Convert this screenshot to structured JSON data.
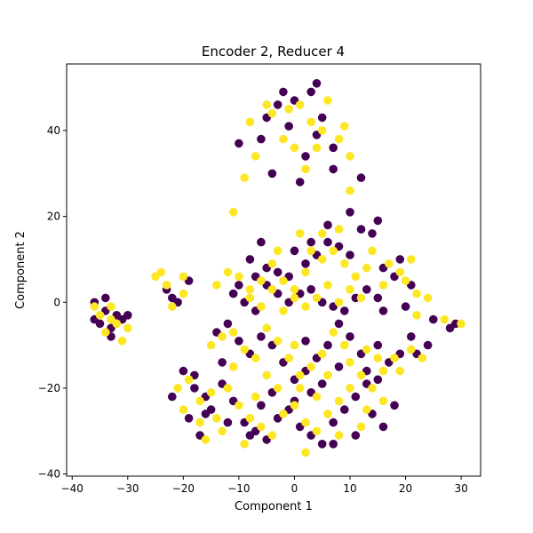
{
  "chart_data": {
    "type": "scatter",
    "title": "Encoder 2, Reducer 4",
    "xlabel": "Component 1",
    "ylabel": "Component 2",
    "xlim": [
      -41,
      33.5
    ],
    "ylim": [
      -40.5,
      55.5
    ],
    "xticks": [
      -40,
      -30,
      -20,
      -10,
      0,
      10,
      20,
      30
    ],
    "yticks": [
      -40,
      -20,
      0,
      20,
      40
    ],
    "grid": false,
    "legend": "none",
    "colors": {
      "class_0": "#440154",
      "class_1": "#fde725"
    },
    "series": [
      {
        "color": "#440154",
        "points": [
          [
            -3,
            46
          ],
          [
            0,
            47
          ],
          [
            3,
            49
          ],
          [
            -5,
            43
          ],
          [
            4,
            39
          ],
          [
            -6,
            38
          ],
          [
            2,
            34
          ],
          [
            -10,
            37
          ],
          [
            7,
            36
          ],
          [
            5,
            43
          ],
          [
            -1,
            41
          ],
          [
            4,
            51
          ],
          [
            -2,
            49
          ],
          [
            -4,
            30
          ],
          [
            7,
            31
          ],
          [
            12,
            29
          ],
          [
            1,
            28
          ],
          [
            -36,
            -4
          ],
          [
            -34,
            -2
          ],
          [
            -33,
            -6
          ],
          [
            -35,
            -5
          ],
          [
            -32,
            -3
          ],
          [
            -34,
            1
          ],
          [
            -31,
            -4
          ],
          [
            -30,
            -3
          ],
          [
            -33,
            -8
          ],
          [
            -36,
            0
          ],
          [
            -19,
            5
          ],
          [
            -23,
            3
          ],
          [
            -22,
            1
          ],
          [
            -21,
            0
          ],
          [
            -10,
            4
          ],
          [
            -7,
            6
          ],
          [
            -5,
            8
          ],
          [
            -3,
            7
          ],
          [
            -1,
            6
          ],
          [
            2,
            9
          ],
          [
            4,
            11
          ],
          [
            6,
            14
          ],
          [
            8,
            13
          ],
          [
            10,
            11
          ],
          [
            12,
            17
          ],
          [
            14,
            16
          ],
          [
            15,
            19
          ],
          [
            13,
            3
          ],
          [
            11,
            1
          ],
          [
            9,
            -2
          ],
          [
            7,
            -1
          ],
          [
            5,
            0
          ],
          [
            3,
            3
          ],
          [
            1,
            2
          ],
          [
            -1,
            0
          ],
          [
            -3,
            2
          ],
          [
            -5,
            4
          ],
          [
            -7,
            -2
          ],
          [
            -9,
            0
          ],
          [
            -11,
            2
          ],
          [
            6,
            18
          ],
          [
            3,
            14
          ],
          [
            0,
            12
          ],
          [
            10,
            21
          ],
          [
            16,
            8
          ],
          [
            18,
            6
          ],
          [
            20,
            -1
          ],
          [
            21,
            4
          ],
          [
            -8,
            10
          ],
          [
            -6,
            14
          ],
          [
            16,
            -2
          ],
          [
            19,
            10
          ],
          [
            15,
            1
          ],
          [
            28,
            -6
          ],
          [
            29,
            -5
          ],
          [
            25,
            -4
          ],
          [
            22,
            -12
          ],
          [
            24,
            -10
          ],
          [
            21,
            -8
          ],
          [
            -20,
            -16
          ],
          [
            -18,
            -20
          ],
          [
            -16,
            -22
          ],
          [
            -15,
            -25
          ],
          [
            -13,
            -19
          ],
          [
            -11,
            -23
          ],
          [
            -9,
            -28
          ],
          [
            -7,
            -30
          ],
          [
            -5,
            -32
          ],
          [
            -3,
            -27
          ],
          [
            -1,
            -25
          ],
          [
            1,
            -29
          ],
          [
            3,
            -31
          ],
          [
            5,
            -33
          ],
          [
            7,
            -28
          ],
          [
            9,
            -25
          ],
          [
            11,
            -22
          ],
          [
            13,
            -19
          ],
          [
            15,
            -18
          ],
          [
            17,
            -14
          ],
          [
            19,
            -12
          ],
          [
            10,
            -8
          ],
          [
            8,
            -5
          ],
          [
            6,
            -10
          ],
          [
            4,
            -13
          ],
          [
            2,
            -16
          ],
          [
            0,
            -18
          ],
          [
            -2,
            -14
          ],
          [
            -4,
            -10
          ],
          [
            -6,
            -8
          ],
          [
            -8,
            -12
          ],
          [
            -10,
            -9
          ],
          [
            -12,
            -5
          ],
          [
            -14,
            -7
          ],
          [
            -16,
            -26
          ],
          [
            -12,
            -28
          ],
          [
            -8,
            -31
          ],
          [
            3,
            -21
          ],
          [
            5,
            -19
          ],
          [
            8,
            -15
          ],
          [
            12,
            -12
          ],
          [
            15,
            -10
          ],
          [
            -19,
            -27
          ],
          [
            -22,
            -22
          ],
          [
            -17,
            -31
          ],
          [
            14,
            -26
          ],
          [
            16,
            -29
          ],
          [
            18,
            -24
          ],
          [
            -4,
            -21
          ],
          [
            0,
            -23
          ],
          [
            7,
            -33
          ],
          [
            11,
            -31
          ],
          [
            -6,
            -24
          ],
          [
            -18,
            -17
          ],
          [
            -13,
            -14
          ],
          [
            2,
            -9
          ],
          [
            13,
            -16
          ]
        ]
      },
      {
        "color": "#fde725",
        "points": [
          [
            -4,
            44
          ],
          [
            -1,
            45
          ],
          [
            1,
            46
          ],
          [
            3,
            42
          ],
          [
            -2,
            38
          ],
          [
            5,
            40
          ],
          [
            -7,
            34
          ],
          [
            8,
            38
          ],
          [
            10,
            34
          ],
          [
            6,
            47
          ],
          [
            -8,
            42
          ],
          [
            0,
            36
          ],
          [
            2,
            31
          ],
          [
            9,
            41
          ],
          [
            -9,
            29
          ],
          [
            -5,
            46
          ],
          [
            4,
            36
          ],
          [
            10,
            26
          ],
          [
            -35,
            -3
          ],
          [
            -33,
            -1
          ],
          [
            -32,
            -5
          ],
          [
            -34,
            -7
          ],
          [
            -30,
            -6
          ],
          [
            -31,
            -9
          ],
          [
            -36,
            -1
          ],
          [
            -33,
            -4
          ],
          [
            -24,
            7
          ],
          [
            -25,
            6
          ],
          [
            -23,
            4
          ],
          [
            -20,
            6
          ],
          [
            -20,
            2
          ],
          [
            -22,
            -1
          ],
          [
            -14,
            4
          ],
          [
            -11,
            21
          ],
          [
            -8,
            3
          ],
          [
            -6,
            5
          ],
          [
            -4,
            9
          ],
          [
            -2,
            5
          ],
          [
            0,
            3
          ],
          [
            2,
            7
          ],
          [
            5,
            10
          ],
          [
            7,
            12
          ],
          [
            9,
            9
          ],
          [
            11,
            6
          ],
          [
            13,
            8
          ],
          [
            12,
            1
          ],
          [
            10,
            3
          ],
          [
            8,
            0
          ],
          [
            6,
            4
          ],
          [
            4,
            1
          ],
          [
            2,
            -1
          ],
          [
            0,
            1
          ],
          [
            -2,
            -2
          ],
          [
            -4,
            3
          ],
          [
            -6,
            -1
          ],
          [
            -8,
            1
          ],
          [
            -10,
            6
          ],
          [
            1,
            16
          ],
          [
            5,
            16
          ],
          [
            8,
            17
          ],
          [
            3,
            12
          ],
          [
            -3,
            12
          ],
          [
            17,
            9
          ],
          [
            19,
            7
          ],
          [
            21,
            10
          ],
          [
            14,
            12
          ],
          [
            22,
            2
          ],
          [
            20,
            5
          ],
          [
            16,
            4
          ],
          [
            -12,
            7
          ],
          [
            24,
            1
          ],
          [
            27,
            -4
          ],
          [
            30,
            -5
          ],
          [
            22,
            -3
          ],
          [
            21,
            -11
          ],
          [
            23,
            -13
          ],
          [
            -19,
            -18
          ],
          [
            -17,
            -23
          ],
          [
            -15,
            -21
          ],
          [
            -14,
            -27
          ],
          [
            -12,
            -20
          ],
          [
            -10,
            -24
          ],
          [
            -8,
            -27
          ],
          [
            -6,
            -29
          ],
          [
            -4,
            -31
          ],
          [
            -2,
            -26
          ],
          [
            0,
            -24
          ],
          [
            2,
            -28
          ],
          [
            4,
            -30
          ],
          [
            6,
            -26
          ],
          [
            8,
            -23
          ],
          [
            10,
            -20
          ],
          [
            12,
            -17
          ],
          [
            14,
            -20
          ],
          [
            16,
            -16
          ],
          [
            18,
            -13
          ],
          [
            9,
            -10
          ],
          [
            7,
            -7
          ],
          [
            5,
            -12
          ],
          [
            3,
            -15
          ],
          [
            1,
            -17
          ],
          [
            -1,
            -13
          ],
          [
            -3,
            -9
          ],
          [
            -5,
            -6
          ],
          [
            -7,
            -13
          ],
          [
            -9,
            -11
          ],
          [
            -11,
            -7
          ],
          [
            -13,
            -8
          ],
          [
            -15,
            -10
          ],
          [
            -17,
            -28
          ],
          [
            -13,
            -30
          ],
          [
            -9,
            -33
          ],
          [
            2,
            -35
          ],
          [
            4,
            -22
          ],
          [
            6,
            -17
          ],
          [
            10,
            -14
          ],
          [
            13,
            -11
          ],
          [
            15,
            -13
          ],
          [
            -20,
            -25
          ],
          [
            -21,
            -20
          ],
          [
            -16,
            -32
          ],
          [
            13,
            -25
          ],
          [
            16,
            -23
          ],
          [
            19,
            -16
          ],
          [
            -3,
            -20
          ],
          [
            1,
            -20
          ],
          [
            8,
            -31
          ],
          [
            12,
            -29
          ],
          [
            -7,
            -22
          ],
          [
            -11,
            -15
          ],
          [
            -5,
            -17
          ],
          [
            0,
            -10
          ]
        ]
      }
    ]
  }
}
